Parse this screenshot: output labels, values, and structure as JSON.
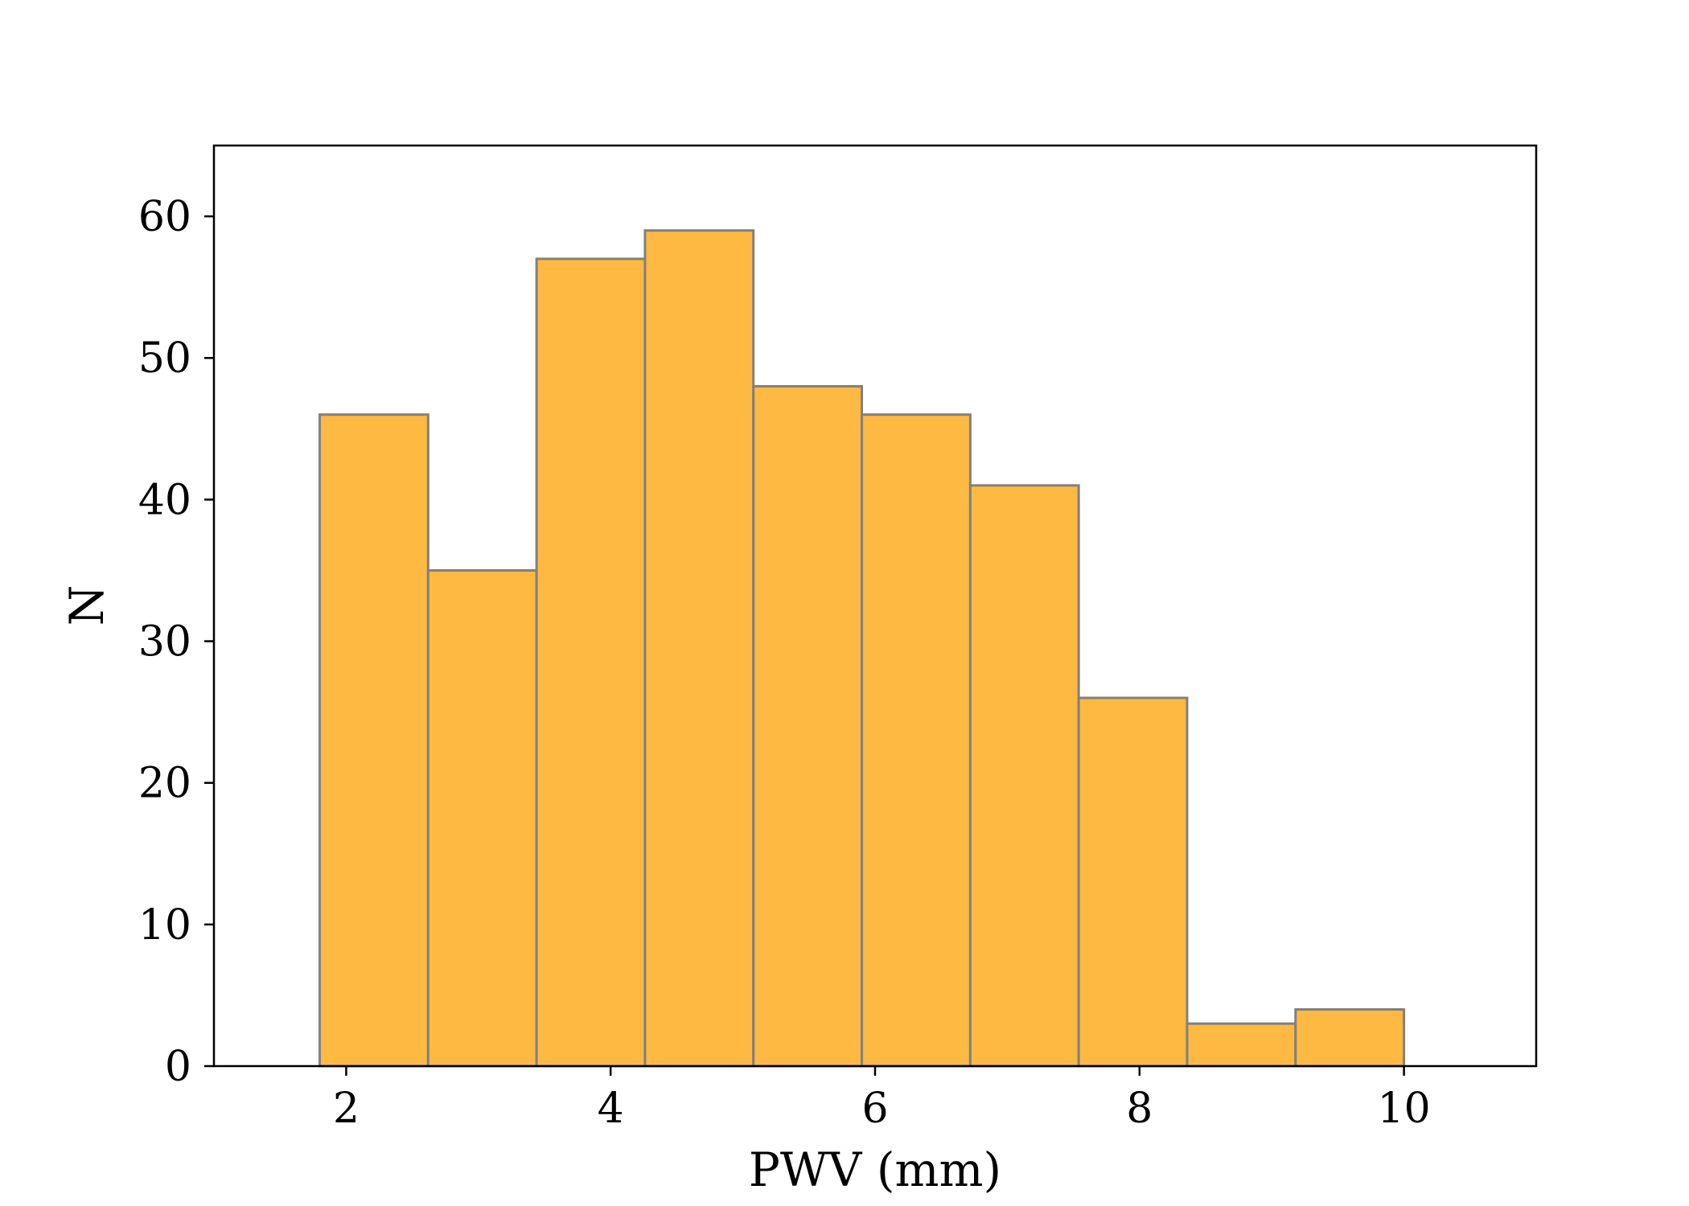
{
  "chart_data": {
    "type": "bar",
    "subtype": "histogram",
    "xlabel": "PWV (mm)",
    "ylabel": "N",
    "xlim": [
      1.0,
      11.0
    ],
    "ylim": [
      0,
      65
    ],
    "xticks": [
      2,
      4,
      6,
      8,
      10
    ],
    "yticks": [
      0,
      10,
      20,
      30,
      40,
      50,
      60
    ],
    "bins": [
      {
        "x0": 1.8,
        "x1": 2.62,
        "count": 46
      },
      {
        "x0": 2.62,
        "x1": 3.44,
        "count": 35
      },
      {
        "x0": 3.44,
        "x1": 4.26,
        "count": 57
      },
      {
        "x0": 4.26,
        "x1": 5.08,
        "count": 59
      },
      {
        "x0": 5.08,
        "x1": 5.9,
        "count": 48
      },
      {
        "x0": 5.9,
        "x1": 6.72,
        "count": 46
      },
      {
        "x0": 6.72,
        "x1": 7.54,
        "count": 41
      },
      {
        "x0": 7.54,
        "x1": 8.36,
        "count": 26
      },
      {
        "x0": 8.36,
        "x1": 9.18,
        "count": 3
      },
      {
        "x0": 9.18,
        "x1": 10.0,
        "count": 4
      }
    ],
    "grid": false,
    "colors": {
      "bar_fill": "#FDB942",
      "bar_edge": "#808080",
      "axes": "#000000"
    }
  }
}
